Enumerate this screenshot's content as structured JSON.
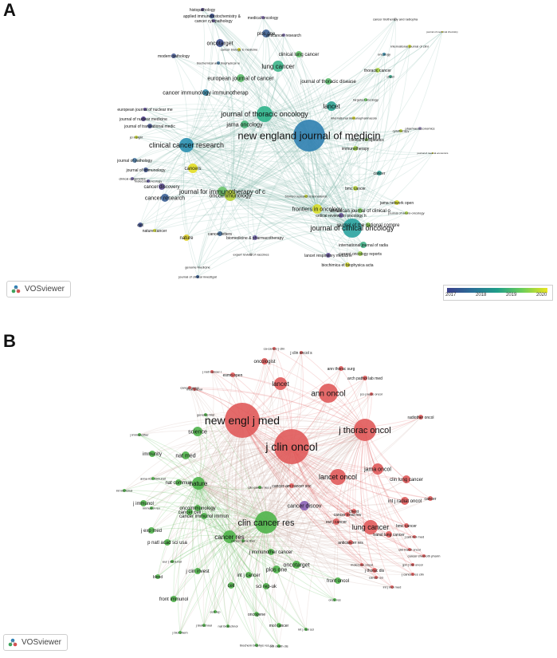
{
  "panel_a": {
    "letter": "A",
    "legend": {
      "years": [
        "2017",
        "2018",
        "2019",
        "2020"
      ],
      "colors": [
        "#3b3f8c",
        "#2a6f97",
        "#1f9e89",
        "#6cce59",
        "#e9e51f"
      ]
    },
    "badge": "VOSviewer",
    "nodes": [
      {
        "label": "new england journal of medicin",
        "c": "#2f7fb0",
        "r": 20,
        "fs": 13
      },
      {
        "label": "journal of clinical oncology",
        "c": "#2aa3a0",
        "r": 12,
        "fs": 9
      },
      {
        "label": "journal of thoracic oncology",
        "c": "#2db38a",
        "r": 10,
        "fs": 9
      },
      {
        "label": "clinical cancer research",
        "c": "#2a8fb0",
        "r": 9,
        "fs": 9
      },
      {
        "label": "lung cancer",
        "c": "#3cb48a",
        "r": 7,
        "fs": 8
      },
      {
        "label": "lancet",
        "c": "#2ca090",
        "r": 6,
        "fs": 8
      },
      {
        "label": "journal for immunotherapy of c",
        "c": "#6ac46a",
        "r": 6,
        "fs": 8
      },
      {
        "label": "oncoimmunology",
        "c": "#b9d33a",
        "r": 7,
        "fs": 7
      },
      {
        "label": "frontiers in oncology",
        "c": "#d8dd2a",
        "r": 6,
        "fs": 7
      },
      {
        "label": "jama oncology",
        "c": "#4cb87c",
        "r": 5,
        "fs": 7
      },
      {
        "label": "cancers",
        "c": "#e3de22",
        "r": 6,
        "fs": 6
      },
      {
        "label": "oncotarget",
        "c": "#3d4f8f",
        "r": 5,
        "fs": 7
      },
      {
        "label": "plos one",
        "c": "#3e6396",
        "r": 5,
        "fs": 6
      },
      {
        "label": "european journal of cancer",
        "c": "#5fbd6d",
        "r": 5,
        "fs": 7
      },
      {
        "label": "cancer immunology immunotherap",
        "c": "#3a8eae",
        "r": 4,
        "fs": 7
      },
      {
        "label": "clinical lung cancer",
        "c": "#64c36a",
        "r": 4,
        "fs": 6
      },
      {
        "label": "journal of thoracic disease",
        "c": "#5fbf70",
        "r": 4,
        "fs": 6
      },
      {
        "label": "thoracic cancer",
        "c": "#a7d143",
        "r": 3,
        "fs": 5
      },
      {
        "label": "cancer research",
        "c": "#3a5f95",
        "r": 5,
        "fs": 7
      },
      {
        "label": "cancer discovery",
        "c": "#5c4d8f",
        "r": 4,
        "fs": 6
      },
      {
        "label": "nature",
        "c": "#e0d22a",
        "r": 4,
        "fs": 6
      },
      {
        "label": "journal of the national compre",
        "c": "#8ccb4f",
        "r": 3,
        "fs": 6
      },
      {
        "label": "american journal of clinical o",
        "c": "#7cc95c",
        "r": 3,
        "fs": 6
      },
      {
        "label": "jama network open",
        "c": "#d3d92a",
        "r": 3,
        "fs": 5
      },
      {
        "label": "bmc cancer",
        "c": "#b8d43e",
        "r": 3,
        "fs": 5
      },
      {
        "label": "international journal of radia",
        "c": "#45b28a",
        "r": 4,
        "fs": 5
      },
      {
        "label": "current oncology reports",
        "c": "#9bd048",
        "r": 3,
        "fs": 5
      },
      {
        "label": "critical reviews in oncology h",
        "c": "#6f5aa0",
        "r": 3,
        "fs": 5
      },
      {
        "label": "biomed research international",
        "c": "#c6d534",
        "r": 2,
        "fs": 4
      },
      {
        "label": "biomedicine & pharmacotherapy",
        "c": "#6f5fa8",
        "r": 3,
        "fs": 5
      },
      {
        "label": "biochimica et biophysica acta",
        "c": "#d0d42e",
        "r": 3,
        "fs": 5
      },
      {
        "label": "lancet respiratory medicine",
        "c": "#6a58a0",
        "r": 3,
        "fs": 5
      },
      {
        "label": "cancer letters",
        "c": "#3e6796",
        "r": 3,
        "fs": 5
      },
      {
        "label": "expert review of vaccines",
        "c": "#bdbdbd",
        "r": 2,
        "fs": 4
      },
      {
        "label": "cell",
        "c": "#3a4a88",
        "r": 3,
        "fs": 5
      },
      {
        "label": "nature cancer",
        "c": "#cbd431",
        "r": 2,
        "fs": 5
      },
      {
        "label": "journal of pathology",
        "c": "#4a7aa5",
        "r": 3,
        "fs": 5
      },
      {
        "label": "journal of immunology",
        "c": "#3b4f8a",
        "r": 3,
        "fs": 5
      },
      {
        "label": "clinical epigenetics",
        "c": "#7060a5",
        "r": 2,
        "fs": 4
      },
      {
        "label": "european journal of nuclear me",
        "c": "#6452a0",
        "r": 2,
        "fs": 5
      },
      {
        "label": "journal of nuclear medicine",
        "c": "#4f3f8a",
        "r": 3,
        "fs": 5
      },
      {
        "label": "journal of translational medic",
        "c": "#4a5a95",
        "r": 3,
        "fs": 5
      },
      {
        "label": "modern pathology",
        "c": "#4a5d95",
        "r": 3,
        "fs": 5
      },
      {
        "label": "histopathology",
        "c": "#5a4e90",
        "r": 2,
        "fs": 5
      },
      {
        "label": "applied immunohistochemistry &",
        "c": "#3a4f8a",
        "r": 3,
        "fs": 5
      },
      {
        "label": "cancer cytopathology",
        "c": "#6a58a0",
        "r": 2,
        "fs": 5
      },
      {
        "label": "medical oncology",
        "c": "#7a63a6",
        "r": 2,
        "fs": 5
      },
      {
        "label": "anticancer research",
        "c": "#7b69a9",
        "r": 2,
        "fs": 5
      },
      {
        "label": "cancer biology & medicine",
        "c": "#d8d92a",
        "r": 2,
        "fs": 4
      },
      {
        "label": "biochemical and biophysical re",
        "c": "#4a7fa8",
        "r": 2,
        "fs": 4
      },
      {
        "label": "targeted oncology",
        "c": "#6dc764",
        "r": 2,
        "fs": 4
      },
      {
        "label": "immunotherapy",
        "c": "#9dce4a",
        "r": 3,
        "fs": 5
      },
      {
        "label": "clinical therapeutics",
        "c": "#8ac958",
        "r": 2,
        "fs": 5
      },
      {
        "label": "cancer",
        "c": "#2ea094",
        "r": 3,
        "fs": 5
      },
      {
        "label": "journal of neuro-oncology",
        "c": "#a9d145",
        "r": 2,
        "fs": 4
      },
      {
        "label": "chest",
        "c": "#3aa88c",
        "r": 2,
        "fs": 4
      },
      {
        "label": "oncology",
        "c": "#3a8ca8",
        "r": 2,
        "fs": 4
      },
      {
        "label": "pharmacoeconomics",
        "c": "#9c8fbd",
        "r": 2,
        "fs": 4
      },
      {
        "label": "journal of medical economics",
        "c": "#e5e030",
        "r": 1,
        "fs": 3
      },
      {
        "label": "international immunopharmacolo",
        "c": "#d7d72d",
        "r": 2,
        "fs": 4
      },
      {
        "label": "cytotherapy",
        "c": "#bcd43b",
        "r": 2,
        "fs": 4
      },
      {
        "label": "molecular oncology",
        "c": "#5a5094",
        "r": 2,
        "fs": 4
      },
      {
        "label": "jci insight",
        "c": "#c7d530",
        "r": 2,
        "fs": 4
      },
      {
        "label": "genome medicine",
        "c": "#c8c8c8",
        "r": 1,
        "fs": 4
      },
      {
        "label": "journal of clinical investigat",
        "c": "#2a4f88",
        "r": 2,
        "fs": 4
      },
      {
        "label": "cancer biotherapy and radiopha",
        "c": "#c7c7c7",
        "r": 2,
        "fs": 4
      },
      {
        "label": "international journal of clini",
        "c": "#c9d333",
        "r": 2,
        "fs": 4
      },
      {
        "label": "journal of medicinal chemistry",
        "c": "#d8d72a",
        "r": 1,
        "fs": 3
      }
    ]
  },
  "panel_b": {
    "letter": "B",
    "badge": "VOSviewer",
    "nodes": [
      {
        "label": "new engl j med",
        "c": "#e05a5a",
        "r": 22,
        "fs": 14
      },
      {
        "label": "j clin oncol",
        "c": "#e05a5a",
        "r": 22,
        "fs": 14
      },
      {
        "label": "j thorac oncol",
        "c": "#e05a5a",
        "r": 14,
        "fs": 11
      },
      {
        "label": "ann oncol",
        "c": "#e05a5a",
        "r": 12,
        "fs": 10
      },
      {
        "label": "clin cancer res",
        "c": "#4fb44a",
        "r": 14,
        "fs": 11
      },
      {
        "label": "lancet oncol",
        "c": "#e05a5a",
        "r": 10,
        "fs": 9
      },
      {
        "label": "lung cancer",
        "c": "#e05a5a",
        "r": 9,
        "fs": 9
      },
      {
        "label": "lancet",
        "c": "#e05a5a",
        "r": 8,
        "fs": 8
      },
      {
        "label": "nature",
        "c": "#4fb44a",
        "r": 8,
        "fs": 8
      },
      {
        "label": "cancer res",
        "c": "#4fb44a",
        "r": 8,
        "fs": 8
      },
      {
        "label": "science",
        "c": "#4fb44a",
        "r": 6,
        "fs": 7
      },
      {
        "label": "jama oncol",
        "c": "#e05a5a",
        "r": 7,
        "fs": 7
      },
      {
        "label": "cancer discov",
        "c": "#8a62b5",
        "r": 6,
        "fs": 7
      },
      {
        "label": "oncotarget",
        "c": "#4fb44a",
        "r": 5,
        "fs": 7
      },
      {
        "label": "plos one",
        "c": "#4fb44a",
        "r": 5,
        "fs": 7
      },
      {
        "label": "nat med",
        "c": "#4fb44a",
        "r": 5,
        "fs": 7
      },
      {
        "label": "immunity",
        "c": "#4fb44a",
        "r": 4,
        "fs": 6
      },
      {
        "label": "clin lung cancer",
        "c": "#e05a5a",
        "r": 5,
        "fs": 6
      },
      {
        "label": "int j radiat oncol",
        "c": "#e05a5a",
        "r": 5,
        "fs": 6
      },
      {
        "label": "oncologist",
        "c": "#e05a5a",
        "r": 4,
        "fs": 6
      },
      {
        "label": "j immunol",
        "c": "#4fb44a",
        "r": 4,
        "fs": 6
      },
      {
        "label": "j exp med",
        "c": "#4fb44a",
        "r": 4,
        "fs": 6
      },
      {
        "label": "p natl acad sci usa",
        "c": "#4fb44a",
        "r": 4,
        "fs": 6
      },
      {
        "label": "front immunol",
        "c": "#4fb44a",
        "r": 4,
        "fs": 6
      },
      {
        "label": "front oncol",
        "c": "#4fb44a",
        "r": 4,
        "fs": 6
      },
      {
        "label": "int j cancer",
        "c": "#4fb44a",
        "r": 4,
        "fs": 6
      },
      {
        "label": "sci rep-uk",
        "c": "#4fb44a",
        "r": 4,
        "fs": 6
      },
      {
        "label": "nat commun",
        "c": "#4fb44a",
        "r": 4,
        "fs": 6
      },
      {
        "label": "oncoimmunology",
        "c": "#4fb44a",
        "r": 4,
        "fs": 6
      },
      {
        "label": "cancer cell",
        "c": "#4fb44a",
        "r": 4,
        "fs": 6
      },
      {
        "label": "j immunother cancer",
        "c": "#4fb44a",
        "r": 4,
        "fs": 6
      },
      {
        "label": "cancer immunol immun",
        "c": "#4fb44a",
        "r": 4,
        "fs": 6
      },
      {
        "label": "j clin invest",
        "c": "#4fb44a",
        "r": 4,
        "fs": 6
      },
      {
        "label": "blood",
        "c": "#4fb44a",
        "r": 3,
        "fs": 5
      },
      {
        "label": "cell",
        "c": "#4fb44a",
        "r": 4,
        "fs": 6
      },
      {
        "label": "oncogene",
        "c": "#4fb44a",
        "r": 3,
        "fs": 5
      },
      {
        "label": "mol cancer",
        "c": "#4fb44a",
        "r": 3,
        "fs": 5
      },
      {
        "label": "esmo open",
        "c": "#e05a5a",
        "r": 3,
        "fs": 5
      },
      {
        "label": "ann thorac surg",
        "c": "#e05a5a",
        "r": 3,
        "fs": 5
      },
      {
        "label": "arch pathol lab med",
        "c": "#e05a5a",
        "r": 3,
        "fs": 5
      },
      {
        "label": "jco precis oncol",
        "c": "#e05a5a",
        "r": 2,
        "fs": 4
      },
      {
        "label": "radiother oncol",
        "c": "#e05a5a",
        "r": 3,
        "fs": 5
      },
      {
        "label": "eur j cancer",
        "c": "#e05a5a",
        "r": 4,
        "fs": 5
      },
      {
        "label": "transl lung cancer",
        "c": "#e05a5a",
        "r": 4,
        "fs": 5
      },
      {
        "label": "bmc cancer",
        "c": "#e05a5a",
        "r": 3,
        "fs": 5
      },
      {
        "label": "anticancer res",
        "c": "#e05a5a",
        "r": 3,
        "fs": 5
      },
      {
        "label": "chest",
        "c": "#e05a5a",
        "r": 3,
        "fs": 5
      },
      {
        "label": "cancer",
        "c": "#e05a5a",
        "r": 3,
        "fs": 5
      },
      {
        "label": "j thorac dis",
        "c": "#e05a5a",
        "r": 3,
        "fs": 5
      },
      {
        "label": "cancer-am cancer soc",
        "c": "#e05a5a",
        "r": 3,
        "fs": 5
      },
      {
        "label": "cancer treat rev",
        "c": "#e05a5a",
        "r": 3,
        "fs": 5
      },
      {
        "label": "j clin oncol s",
        "c": "#e05a5a",
        "r": 2,
        "fs": 5
      },
      {
        "label": "j natl cancer i",
        "c": "#e05a5a",
        "r": 2,
        "fs": 4
      },
      {
        "label": "mod pathol",
        "c": "#e05a5a",
        "r": 2,
        "fs": 4
      },
      {
        "label": "genome biol",
        "c": "#4fb44a",
        "r": 2,
        "fs": 4
      },
      {
        "label": "j biol chem",
        "c": "#4fb44a",
        "r": 2,
        "fs": 4
      },
      {
        "label": "cell rep",
        "c": "#4fb44a",
        "r": 2,
        "fs": 4
      },
      {
        "label": "eur j immunol",
        "c": "#4fb44a",
        "r": 2,
        "fs": 4
      },
      {
        "label": "nat biotechnol",
        "c": "#4fb44a",
        "r": 2,
        "fs": 4
      },
      {
        "label": "j biotechnol",
        "c": "#4fb44a",
        "r": 2,
        "fs": 4
      },
      {
        "label": "biochem biophys res co",
        "c": "#4fb44a",
        "r": 2,
        "fs": 4
      },
      {
        "label": "cell death dis",
        "c": "#4fb44a",
        "r": 2,
        "fs": 4
      },
      {
        "label": "int j mol sci",
        "c": "#4fb44a",
        "r": 2,
        "fs": 4
      },
      {
        "label": "onco res",
        "c": "#4fb44a",
        "r": 2,
        "fs": 4
      },
      {
        "label": "j immunother",
        "c": "#4fb44a",
        "r": 2,
        "fs": 4
      },
      {
        "label": "annu rev immunol",
        "c": "#4fb44a",
        "r": 2,
        "fs": 4
      },
      {
        "label": "int immunol",
        "c": "#4fb44a",
        "r": 2,
        "fs": 4
      },
      {
        "label": "clin cancer res s",
        "c": "#4fb44a",
        "r": 2,
        "fs": 4
      },
      {
        "label": "immunol rev",
        "c": "#4fb44a",
        "r": 2,
        "fs": 4
      },
      {
        "label": "cancer gene ther",
        "c": "#4fb44a",
        "r": 2,
        "fs": 4
      },
      {
        "label": "j cell mol med",
        "c": "#e05a5a",
        "r": 2,
        "fs": 4
      },
      {
        "label": "clin transl oncol",
        "c": "#e05a5a",
        "r": 2,
        "fs": 4
      },
      {
        "label": "cancer chemoth pharm",
        "c": "#e05a5a",
        "r": 2,
        "fs": 4
      },
      {
        "label": "jpn j clin oncol",
        "c": "#e05a5a",
        "r": 2,
        "fs": 4
      },
      {
        "label": "j cancer res clin",
        "c": "#e05a5a",
        "r": 2,
        "fs": 4
      },
      {
        "label": "ca-cancer j clin",
        "c": "#e05a5a",
        "r": 2,
        "fs": 4
      },
      {
        "label": "cancer genet",
        "c": "#e05a5a",
        "r": 2,
        "fs": 4
      },
      {
        "label": "int j mol med",
        "c": "#e05a5a",
        "r": 2,
        "fs": 4
      },
      {
        "label": "cancer sci",
        "c": "#e05a5a",
        "r": 2,
        "fs": 4
      },
      {
        "label": "molecular oncol",
        "c": "#e05a5a",
        "r": 2,
        "fs": 4
      }
    ]
  }
}
